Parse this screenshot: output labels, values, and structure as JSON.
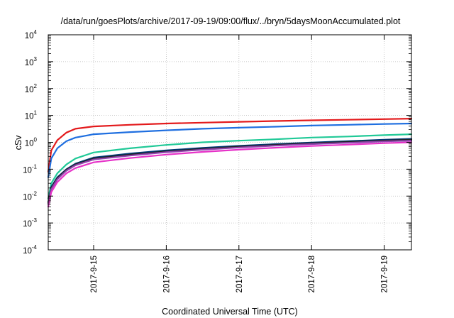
{
  "chart_data": {
    "type": "line",
    "title": "/data/run/goesPlots/archive/2017-09-19/09:00/flux/../bryn/5daysMoonAccumulated.plot",
    "xlabel": "Coordinated Universal Time (UTC)",
    "ylabel": "cSv",
    "yscale": "log",
    "ylim_exponent": [
      -4,
      4
    ],
    "y_ticks": [
      {
        "base": "10",
        "exp": "-4"
      },
      {
        "base": "10",
        "exp": "-3"
      },
      {
        "base": "10",
        "exp": "-2"
      },
      {
        "base": "10",
        "exp": "-1"
      },
      {
        "base": "10",
        "exp": "0"
      },
      {
        "base": "10",
        "exp": "1"
      },
      {
        "base": "10",
        "exp": "2"
      },
      {
        "base": "10",
        "exp": "3"
      },
      {
        "base": "10",
        "exp": "4"
      }
    ],
    "xlim": [
      "2017-09-14 09:00",
      "2017-09-19 09:00"
    ],
    "x_ticks": [
      "2017-9-15",
      "2017-9-16",
      "2017-9-17",
      "2017-9-18",
      "2017-9-19"
    ],
    "grid": true,
    "series": [
      {
        "color": "#e31a1c",
        "x": [
          "2017-09-14 09:00",
          "2017-09-14 10:00",
          "2017-09-14 12:00",
          "2017-09-14 15:00",
          "2017-09-14 18:00",
          "2017-09-15 00:00",
          "2017-09-15 12:00",
          "2017-09-16 00:00",
          "2017-09-16 12:00",
          "2017-09-17 00:00",
          "2017-09-17 12:00",
          "2017-09-18 00:00",
          "2017-09-18 12:00",
          "2017-09-19 00:00",
          "2017-09-19 09:00"
        ],
        "y": [
          0.08,
          0.5,
          1.2,
          2.3,
          3.2,
          3.9,
          4.5,
          5.0,
          5.4,
          5.8,
          6.2,
          6.6,
          6.9,
          7.3,
          7.6
        ]
      },
      {
        "color": "#1f6fe0",
        "x": [
          "2017-09-14 09:00",
          "2017-09-14 10:00",
          "2017-09-14 12:00",
          "2017-09-14 15:00",
          "2017-09-14 18:00",
          "2017-09-15 00:00",
          "2017-09-15 12:00",
          "2017-09-16 00:00",
          "2017-09-16 12:00",
          "2017-09-17 00:00",
          "2017-09-17 12:00",
          "2017-09-18 00:00",
          "2017-09-18 12:00",
          "2017-09-19 00:00",
          "2017-09-19 09:00"
        ],
        "y": [
          0.05,
          0.25,
          0.6,
          1.1,
          1.5,
          2.0,
          2.4,
          2.8,
          3.2,
          3.5,
          3.8,
          4.2,
          4.5,
          4.8,
          5.0
        ]
      },
      {
        "color": "#20c997",
        "x": [
          "2017-09-14 09:00",
          "2017-09-14 10:00",
          "2017-09-14 12:00",
          "2017-09-14 15:00",
          "2017-09-14 18:00",
          "2017-09-15 00:00",
          "2017-09-15 12:00",
          "2017-09-16 00:00",
          "2017-09-16 12:00",
          "2017-09-17 00:00",
          "2017-09-17 12:00",
          "2017-09-18 00:00",
          "2017-09-18 12:00",
          "2017-09-19 00:00",
          "2017-09-19 09:00"
        ],
        "y": [
          0.008,
          0.03,
          0.07,
          0.15,
          0.25,
          0.42,
          0.6,
          0.8,
          1.0,
          1.15,
          1.3,
          1.5,
          1.65,
          1.85,
          2.0
        ]
      },
      {
        "color": "#003a7a",
        "x": [
          "2017-09-14 09:00",
          "2017-09-14 10:00",
          "2017-09-14 12:00",
          "2017-09-14 15:00",
          "2017-09-14 18:00",
          "2017-09-15 00:00",
          "2017-09-15 12:00",
          "2017-09-16 00:00",
          "2017-09-16 12:00",
          "2017-09-17 00:00",
          "2017-09-17 12:00",
          "2017-09-18 00:00",
          "2017-09-18 12:00",
          "2017-09-19 00:00",
          "2017-09-19 09:00"
        ],
        "y": [
          0.006,
          0.022,
          0.05,
          0.1,
          0.16,
          0.27,
          0.38,
          0.5,
          0.62,
          0.74,
          0.86,
          0.98,
          1.1,
          1.25,
          1.35
        ]
      },
      {
        "color": "#222222",
        "x": [
          "2017-09-14 09:00",
          "2017-09-14 10:00",
          "2017-09-14 12:00",
          "2017-09-14 15:00",
          "2017-09-14 18:00",
          "2017-09-15 00:00",
          "2017-09-15 12:00",
          "2017-09-16 00:00",
          "2017-09-16 12:00",
          "2017-09-17 00:00",
          "2017-09-17 12:00",
          "2017-09-18 00:00",
          "2017-09-18 12:00",
          "2017-09-19 00:00",
          "2017-09-19 09:00"
        ],
        "y": [
          0.0055,
          0.02,
          0.046,
          0.095,
          0.15,
          0.25,
          0.35,
          0.46,
          0.57,
          0.69,
          0.8,
          0.92,
          1.03,
          1.16,
          1.25
        ]
      },
      {
        "color": "#8e44ad",
        "x": [
          "2017-09-14 09:00",
          "2017-09-14 10:00",
          "2017-09-14 12:00",
          "2017-09-14 15:00",
          "2017-09-14 18:00",
          "2017-09-15 00:00",
          "2017-09-15 12:00",
          "2017-09-16 00:00",
          "2017-09-16 12:00",
          "2017-09-17 00:00",
          "2017-09-17 12:00",
          "2017-09-18 00:00",
          "2017-09-18 12:00",
          "2017-09-19 00:00",
          "2017-09-19 09:00"
        ],
        "y": [
          0.005,
          0.018,
          0.042,
          0.088,
          0.14,
          0.23,
          0.32,
          0.43,
          0.53,
          0.64,
          0.75,
          0.86,
          0.96,
          1.08,
          1.16
        ]
      },
      {
        "color": "#e632c8",
        "x": [
          "2017-09-14 09:00",
          "2017-09-14 10:00",
          "2017-09-14 12:00",
          "2017-09-14 15:00",
          "2017-09-14 18:00",
          "2017-09-15 00:00",
          "2017-09-15 12:00",
          "2017-09-16 00:00",
          "2017-09-16 12:00",
          "2017-09-17 00:00",
          "2017-09-17 12:00",
          "2017-09-18 00:00",
          "2017-09-18 12:00",
          "2017-09-19 00:00",
          "2017-09-19 09:00"
        ],
        "y": [
          0.004,
          0.014,
          0.033,
          0.07,
          0.11,
          0.18,
          0.26,
          0.35,
          0.44,
          0.53,
          0.63,
          0.73,
          0.82,
          0.93,
          1.0
        ]
      }
    ]
  }
}
